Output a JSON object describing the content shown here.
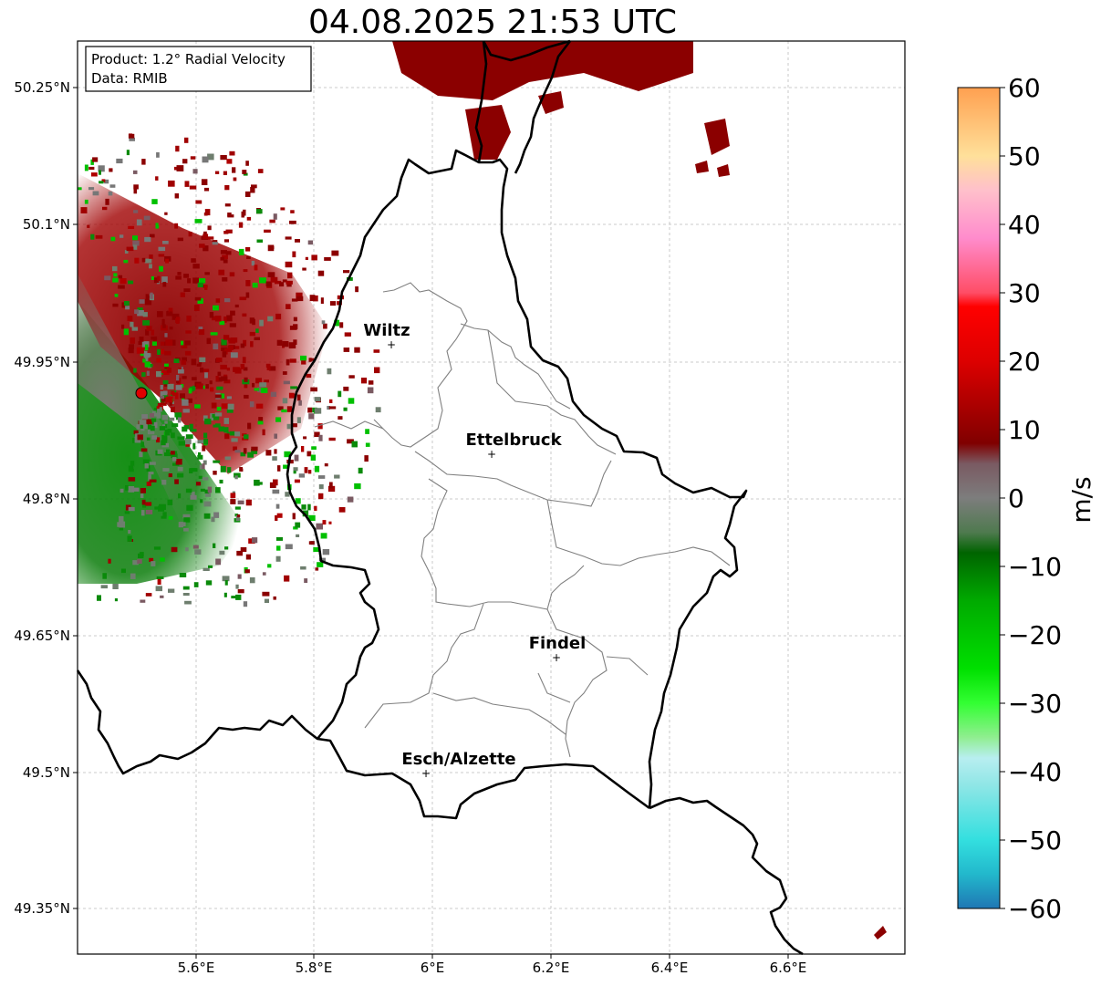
{
  "title": "04.08.2025 21:53 UTC",
  "infobox": {
    "product": "Product: 1.2° Radial Velocity",
    "data": "Data: RMIB"
  },
  "axes": {
    "lon_ticks": [
      "5.6°E",
      "5.8°E",
      "6°E",
      "6.2°E",
      "6.4°E",
      "6.6°E"
    ],
    "lat_ticks": [
      "50.25°N",
      "50.1°N",
      "49.95°N",
      "49.8°N",
      "49.65°N",
      "49.5°N",
      "49.35°N"
    ]
  },
  "cities": [
    {
      "name": "Wiltz",
      "lon": 5.93,
      "lat": 49.967
    },
    {
      "name": "Ettelbruck",
      "lon": 6.1,
      "lat": 49.848
    },
    {
      "name": "Findel",
      "lon": 6.21,
      "lat": 49.626
    },
    {
      "name": "Esch/Alzette",
      "lon": 5.99,
      "lat": 49.499
    }
  ],
  "radar_site": {
    "lon": 5.506,
    "lat": 49.914,
    "color": "#e00000"
  },
  "colorbar": {
    "label": "m/s",
    "ticks": [
      "60",
      "50",
      "40",
      "30",
      "20",
      "10",
      "0",
      "−10",
      "−20",
      "−30",
      "−40",
      "−50",
      "−60"
    ],
    "range": [
      -60,
      60
    ],
    "stops": [
      {
        "v": -60,
        "c": "#1f77b4"
      },
      {
        "v": -55,
        "c": "#22b8cc"
      },
      {
        "v": -50,
        "c": "#33dfdf"
      },
      {
        "v": -42,
        "c": "#8fe6e6"
      },
      {
        "v": -38,
        "c": "#b8eef0"
      },
      {
        "v": -35,
        "c": "#90ee90"
      },
      {
        "v": -30,
        "c": "#33ff33"
      },
      {
        "v": -25,
        "c": "#00e000"
      },
      {
        "v": -15,
        "c": "#00aa00"
      },
      {
        "v": -8,
        "c": "#006400"
      },
      {
        "v": -5,
        "c": "#4f7a4f"
      },
      {
        "v": 0,
        "c": "#7d7d7d"
      },
      {
        "v": 5,
        "c": "#7a5a62"
      },
      {
        "v": 8,
        "c": "#800000"
      },
      {
        "v": 20,
        "c": "#dd0000"
      },
      {
        "v": 28,
        "c": "#ff0000"
      },
      {
        "v": 30,
        "c": "#ff4d66"
      },
      {
        "v": 38,
        "c": "#ff8ccc"
      },
      {
        "v": 45,
        "c": "#ffc0cb"
      },
      {
        "v": 50,
        "c": "#ffe09a"
      },
      {
        "v": 60,
        "c": "#ffa050"
      }
    ]
  },
  "colors": {
    "border": "#000000",
    "canton": "#808080",
    "grid": "#bbbbbb"
  }
}
